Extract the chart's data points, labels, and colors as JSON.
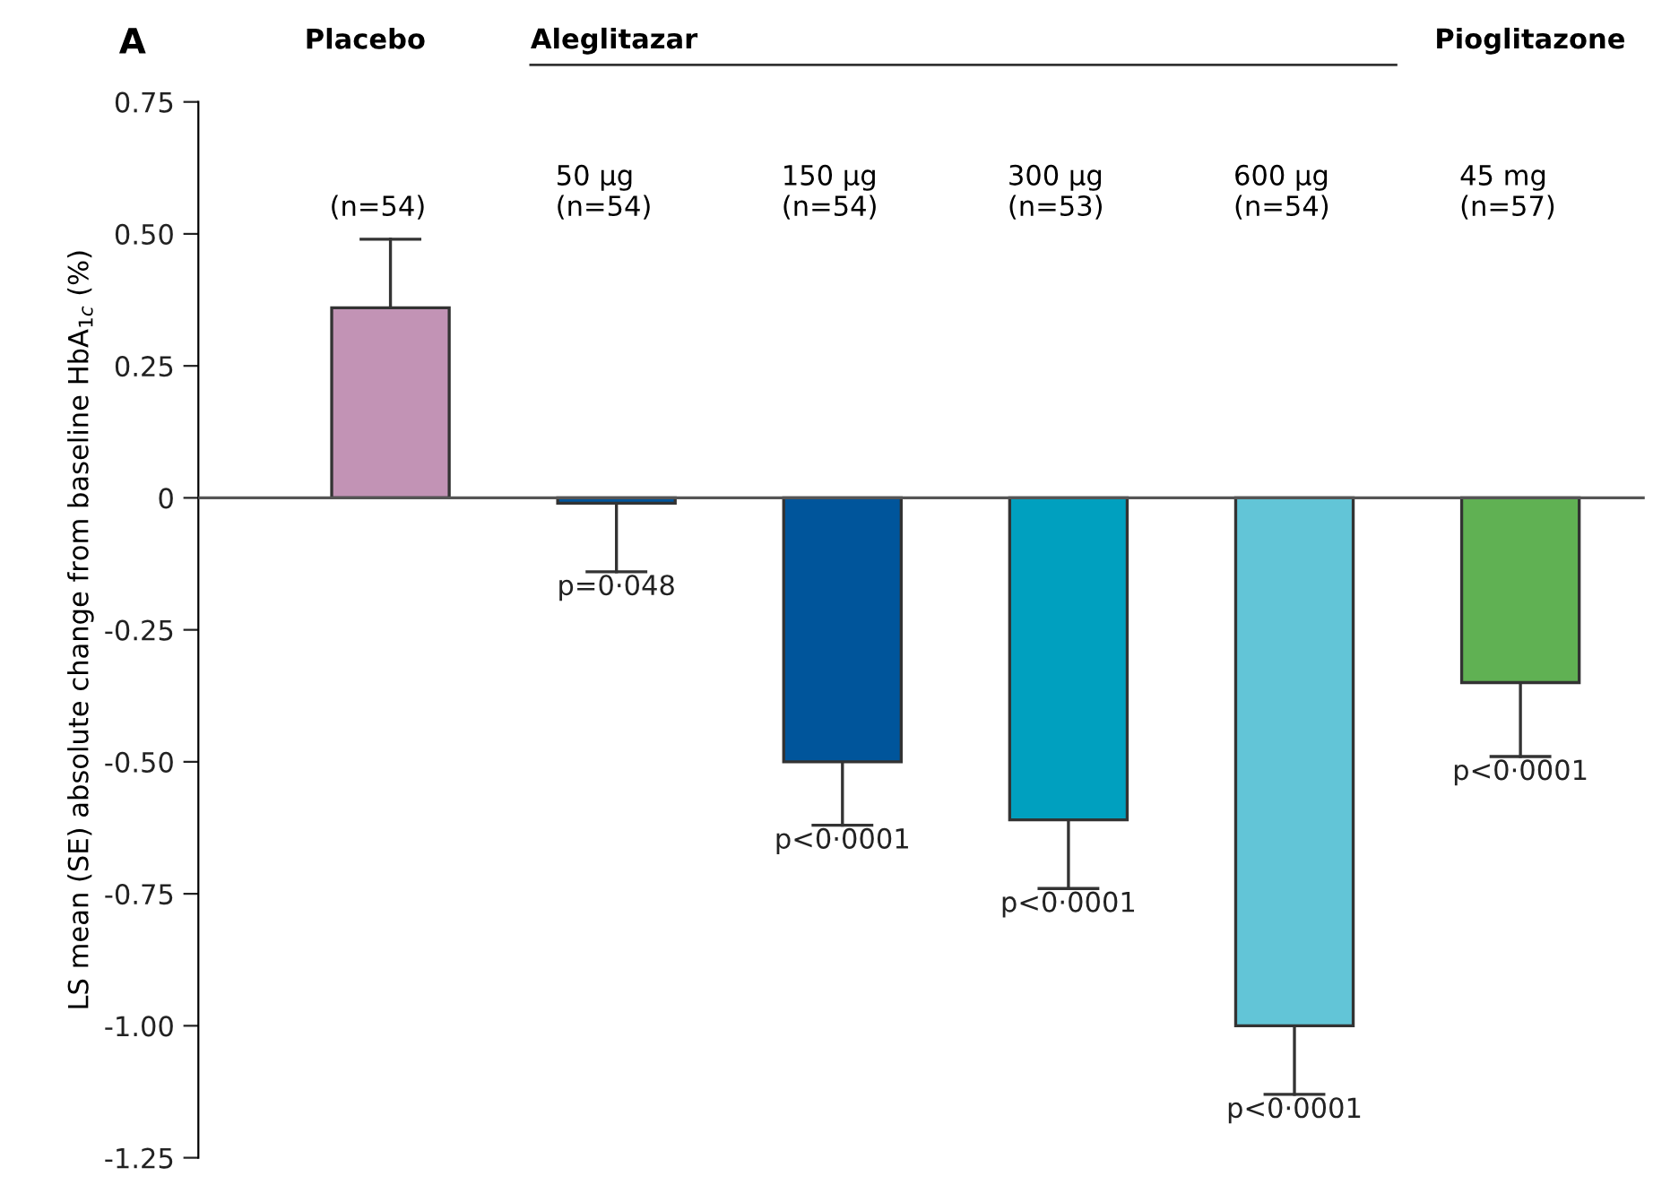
{
  "chart_data": {
    "type": "bar",
    "title": "A",
    "ylabel": "LS mean (SE) absolute change from baseline HbA$_{1c}$ (%)",
    "annotations": [
      "Placebo",
      "Aleglitazar",
      "Pioglitazone"
    ],
    "value_labels": [
      null,
      "p=0·048",
      "p<0·0001",
      "p<0·0001",
      "p<0·0001",
      "p<0·0001"
    ],
    "categories": [
      "(n=54)",
      "50 µg\n(n=54)",
      "150 µg\n(n=54)",
      "300 µg\n(n=53)",
      "600 µg\n(n=54)",
      "45 mg\n(n=57)"
    ],
    "values": [
      0.36,
      -0.01,
      -0.5,
      -0.61,
      -1.0,
      -0.35
    ],
    "colors": [
      "#c293b5",
      "#00559b",
      "#00559b",
      "#00a0bf",
      "#62c5d7",
      "#60b153"
    ],
    "errors": [
      [
        0.36,
        0.49
      ],
      [
        -0.14,
        -0.01
      ],
      [
        -0.62,
        -0.5
      ],
      [
        -0.74,
        -0.61
      ],
      [
        -1.13,
        -1.0
      ],
      [
        -0.49,
        -0.35
      ]
    ],
    "ref_lines": [
      {
        "axis": "y",
        "value": 0,
        "color": "#555555"
      }
    ],
    "ylim": [
      -1.25,
      0.75
    ],
    "yticks": [
      0.75,
      {
        "value": 0.5,
        "label": "0.50"
      },
      0.25,
      0,
      -0.25,
      {
        "value": -0.5,
        "label": "-0.50"
      },
      -0.75,
      {
        "value": -1.0,
        "label": "-1.00"
      },
      -1.25
    ]
  }
}
